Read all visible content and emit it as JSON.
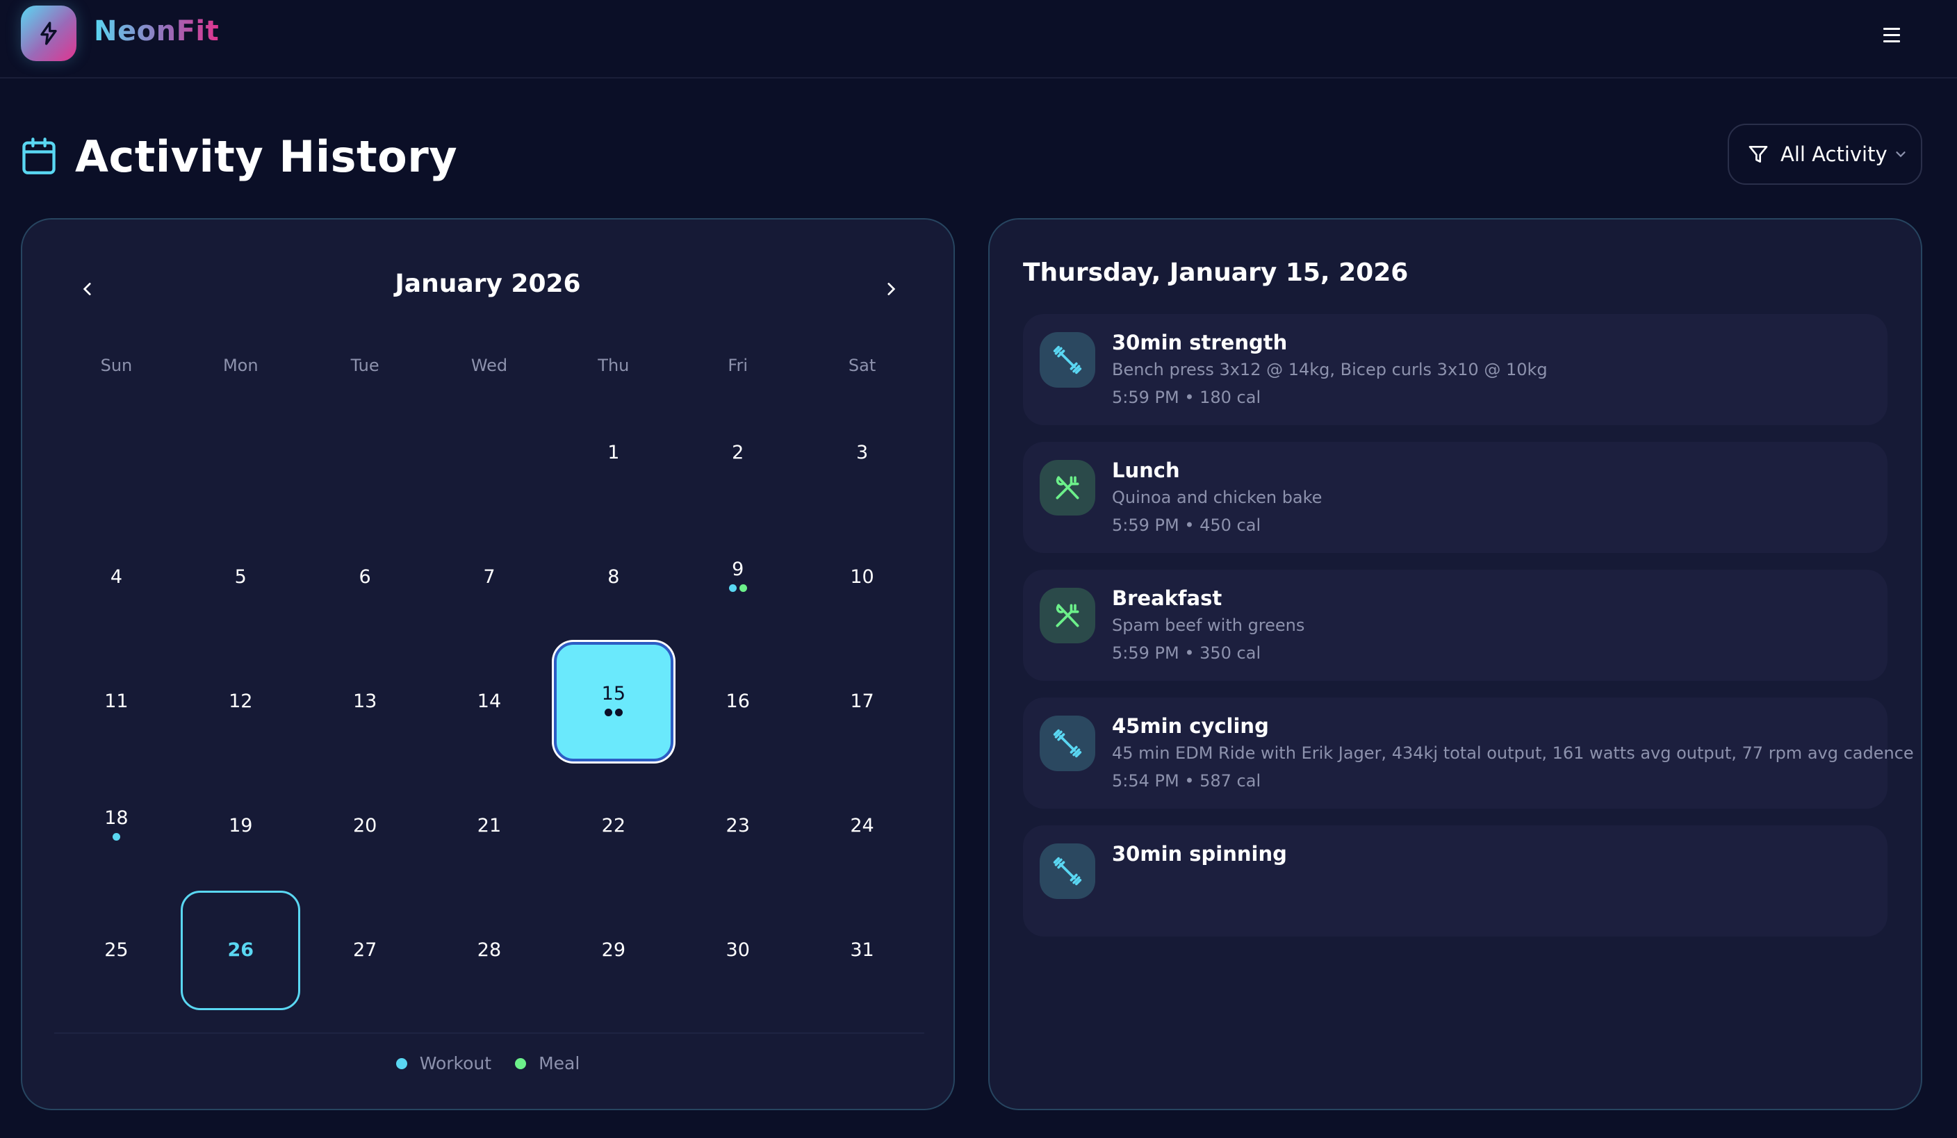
{
  "app": {
    "name": "NeonFit",
    "logo_icon": "lightning-bolt-icon",
    "menu_icon": "hamburger-menu-icon"
  },
  "page": {
    "title": "Activity History",
    "title_icon": "calendar-icon"
  },
  "filter": {
    "label": "All Activity",
    "icon": "filter-funnel-icon",
    "chevron": "chevron-down-icon"
  },
  "colors": {
    "workout": "#5ad7f2",
    "meal": "#6cf08a",
    "selected_bg": "#6ae9fc",
    "background": "#0b0f27",
    "panel": "#161a36"
  },
  "calendar": {
    "month_label": "January 2026",
    "prev_icon": "chevron-left-icon",
    "next_icon": "chevron-right-icon",
    "weekdays": [
      "Sun",
      "Mon",
      "Tue",
      "Wed",
      "Thu",
      "Fri",
      "Sat"
    ],
    "leading_blanks": 4,
    "days": [
      {
        "n": "1"
      },
      {
        "n": "2"
      },
      {
        "n": "3"
      },
      {
        "n": "4"
      },
      {
        "n": "5"
      },
      {
        "n": "6"
      },
      {
        "n": "7"
      },
      {
        "n": "8"
      },
      {
        "n": "9",
        "dots": [
          "workout",
          "meal"
        ]
      },
      {
        "n": "10"
      },
      {
        "n": "11"
      },
      {
        "n": "12"
      },
      {
        "n": "13"
      },
      {
        "n": "14"
      },
      {
        "n": "15",
        "dots": [
          "workout",
          "meal"
        ],
        "selected": true
      },
      {
        "n": "16"
      },
      {
        "n": "17"
      },
      {
        "n": "18",
        "dots": [
          "workout"
        ]
      },
      {
        "n": "19"
      },
      {
        "n": "20"
      },
      {
        "n": "21"
      },
      {
        "n": "22"
      },
      {
        "n": "23"
      },
      {
        "n": "24"
      },
      {
        "n": "25"
      },
      {
        "n": "26",
        "today": true
      },
      {
        "n": "27"
      },
      {
        "n": "28"
      },
      {
        "n": "29"
      },
      {
        "n": "30"
      },
      {
        "n": "31"
      }
    ],
    "legend": [
      {
        "label": "Workout",
        "type": "workout"
      },
      {
        "label": "Meal",
        "type": "meal"
      }
    ]
  },
  "detail": {
    "date_title": "Thursday, January 15, 2026",
    "activities": [
      {
        "type": "workout",
        "icon": "dumbbell-icon",
        "title": "30min strength",
        "description": "Bench press 3x12 @ 14kg, Bicep curls 3x10 @ 10kg",
        "meta": "5:59 PM • 180 cal"
      },
      {
        "type": "meal",
        "icon": "utensils-icon",
        "title": "Lunch",
        "description": "Quinoa and chicken bake",
        "meta": "5:59 PM • 450 cal"
      },
      {
        "type": "meal",
        "icon": "utensils-icon",
        "title": "Breakfast",
        "description": "Spam beef with greens",
        "meta": "5:59 PM • 350 cal"
      },
      {
        "type": "workout",
        "icon": "dumbbell-icon",
        "title": "45min cycling",
        "description": "45 min EDM Ride with Erik Jager, 434kj total output, 161 watts avg output, 77 rpm avg cadence",
        "meta": "5:54 PM • 587 cal"
      },
      {
        "type": "workout",
        "icon": "dumbbell-icon",
        "title": "30min spinning",
        "description": "",
        "meta": ""
      }
    ]
  }
}
